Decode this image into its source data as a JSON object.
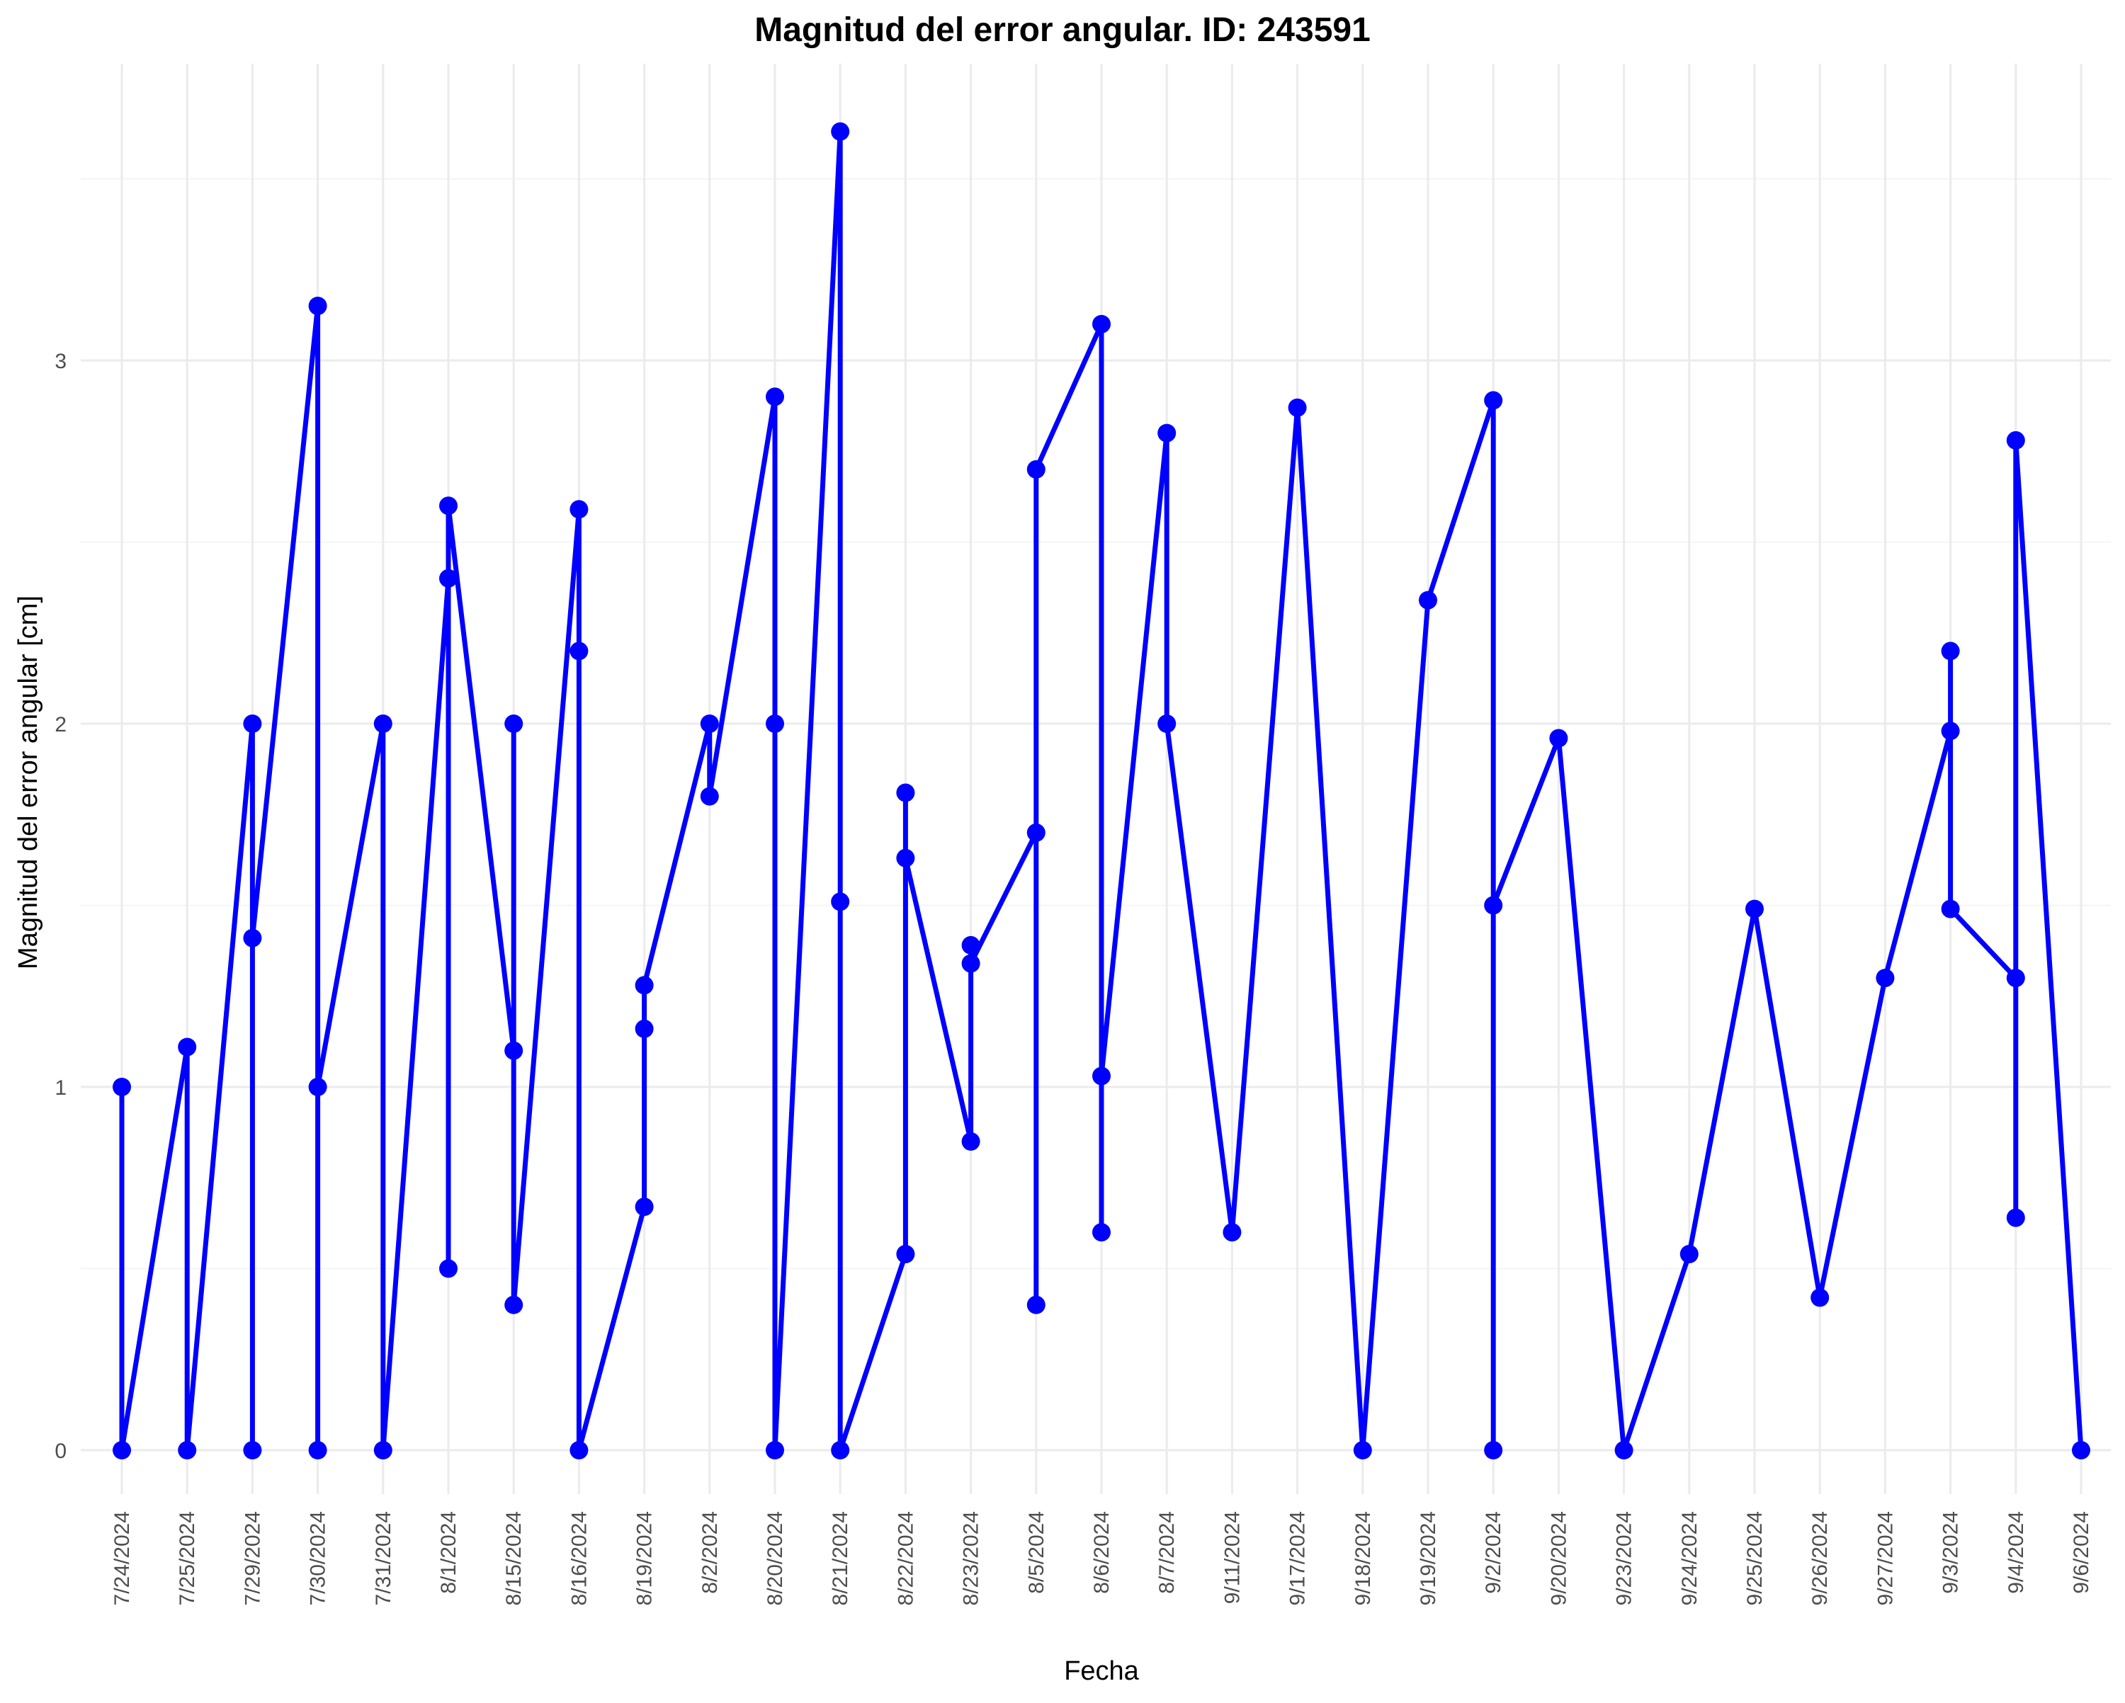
{
  "chart_data": {
    "type": "line",
    "title": "Magnitud del error angular. ID: 243591",
    "xlabel": "Fecha",
    "ylabel": "Magnitud del error angular [cm]",
    "categories": [
      "7/24/2024",
      "7/25/2024",
      "7/29/2024",
      "7/30/2024",
      "7/31/2024",
      "8/1/2024",
      "8/15/2024",
      "8/16/2024",
      "8/19/2024",
      "8/2/2024",
      "8/20/2024",
      "8/21/2024",
      "8/22/2024",
      "8/23/2024",
      "8/5/2024",
      "8/6/2024",
      "8/7/2024",
      "9/11/2024",
      "9/17/2024",
      "9/18/2024",
      "9/19/2024",
      "9/2/2024",
      "9/20/2024",
      "9/23/2024",
      "9/24/2024",
      "9/25/2024",
      "9/26/2024",
      "9/27/2024",
      "9/3/2024",
      "9/4/2024",
      "9/6/2024"
    ],
    "y_ticks": [
      "0",
      "1",
      "2",
      "3"
    ],
    "ylim": [
      -0.1,
      3.78
    ],
    "grid": true,
    "line_color": "#0000ff",
    "points": [
      [
        "7/24/2024",
        1.0
      ],
      [
        "7/24/2024",
        0.0
      ],
      [
        "7/25/2024",
        1.11
      ],
      [
        "7/25/2024",
        0.0
      ],
      [
        "7/29/2024",
        2.0
      ],
      [
        "7/29/2024",
        0.0
      ],
      [
        "7/29/2024",
        1.41
      ],
      [
        "7/30/2024",
        3.15
      ],
      [
        "7/30/2024",
        0.0
      ],
      [
        "7/30/2024",
        1.0
      ],
      [
        "7/31/2024",
        2.0
      ],
      [
        "7/31/2024",
        0.0
      ],
      [
        "8/1/2024",
        2.4
      ],
      [
        "8/1/2024",
        0.5
      ],
      [
        "8/1/2024",
        2.6
      ],
      [
        "8/15/2024",
        1.1
      ],
      [
        "8/15/2024",
        2.0
      ],
      [
        "8/15/2024",
        0.4
      ],
      [
        "8/16/2024",
        2.59
      ],
      [
        "8/16/2024",
        2.2
      ],
      [
        "8/16/2024",
        0.0
      ],
      [
        "8/19/2024",
        0.67
      ],
      [
        "8/19/2024",
        1.16
      ],
      [
        "8/19/2024",
        1.28
      ],
      [
        "8/2/2024",
        2.0
      ],
      [
        "8/2/2024",
        1.8
      ],
      [
        "8/20/2024",
        2.9
      ],
      [
        "8/20/2024",
        2.0
      ],
      [
        "8/20/2024",
        0.0
      ],
      [
        "8/21/2024",
        3.63
      ],
      [
        "8/21/2024",
        1.51
      ],
      [
        "8/21/2024",
        0.0
      ],
      [
        "8/22/2024",
        0.54
      ],
      [
        "8/22/2024",
        1.81
      ],
      [
        "8/22/2024",
        1.63
      ],
      [
        "8/23/2024",
        0.85
      ],
      [
        "8/23/2024",
        1.39
      ],
      [
        "8/23/2024",
        1.34
      ],
      [
        "8/5/2024",
        1.7
      ],
      [
        "8/5/2024",
        0.4
      ],
      [
        "8/5/2024",
        2.7
      ],
      [
        "8/6/2024",
        3.1
      ],
      [
        "8/6/2024",
        0.6
      ],
      [
        "8/6/2024",
        1.03
      ],
      [
        "8/7/2024",
        2.8
      ],
      [
        "8/7/2024",
        2.0
      ],
      [
        "9/11/2024",
        0.6
      ],
      [
        "9/17/2024",
        2.87
      ],
      [
        "9/18/2024",
        0.0
      ],
      [
        "9/19/2024",
        2.34
      ],
      [
        "9/2/2024",
        2.89
      ],
      [
        "9/2/2024",
        0.0
      ],
      [
        "9/2/2024",
        1.5
      ],
      [
        "9/20/2024",
        1.96
      ],
      [
        "9/23/2024",
        0.0
      ],
      [
        "9/24/2024",
        0.54
      ],
      [
        "9/25/2024",
        1.49
      ],
      [
        "9/26/2024",
        0.42
      ],
      [
        "9/27/2024",
        1.3
      ],
      [
        "9/3/2024",
        1.98
      ],
      [
        "9/3/2024",
        2.2
      ],
      [
        "9/3/2024",
        1.49
      ],
      [
        "9/4/2024",
        1.3
      ],
      [
        "9/4/2024",
        0.64
      ],
      [
        "9/4/2024",
        2.78
      ],
      [
        "9/6/2024",
        0.0
      ]
    ]
  }
}
